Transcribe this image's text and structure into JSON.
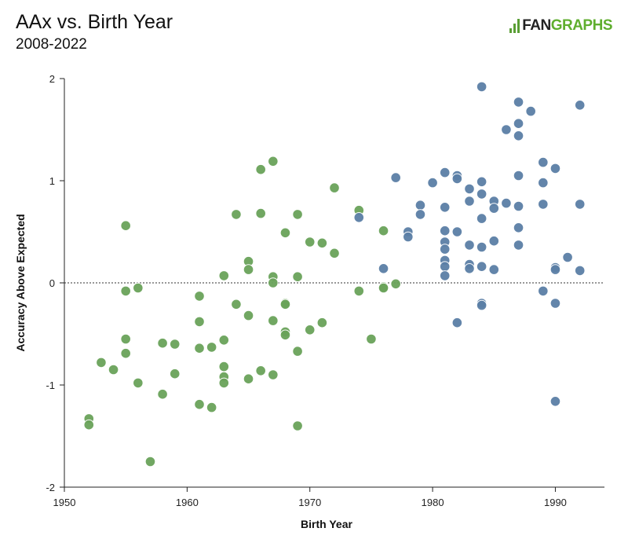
{
  "header": {
    "title": "AAx vs. Birth Year",
    "subtitle": "2008-2022",
    "logo_text_dark": "FAN",
    "logo_text_green": "GRAPHS"
  },
  "chart_data": {
    "type": "scatter",
    "title": "AAx vs. Birth Year",
    "subtitle": "2008-2022",
    "xlabel": "Birth Year",
    "ylabel": "Accuracy Above Expected",
    "xlim": [
      1950,
      1994
    ],
    "ylim": [
      -2,
      2
    ],
    "xticks": [
      1950,
      1960,
      1970,
      1980,
      1990
    ],
    "yticks": [
      -2,
      -1,
      0,
      1,
      2
    ],
    "reference_line": {
      "y": 0,
      "style": "dotted"
    },
    "grid": false,
    "colors": {
      "green": "#6aa35a",
      "blue": "#5b7fa6",
      "stroke": "#ffffff"
    },
    "series": [
      {
        "color": "green",
        "points": [
          [
            1952,
            -1.33
          ],
          [
            1952,
            -1.39
          ],
          [
            1953,
            -0.78
          ],
          [
            1954,
            -0.85
          ],
          [
            1955,
            0.56
          ],
          [
            1955,
            -0.08
          ],
          [
            1955,
            -0.55
          ],
          [
            1955,
            -0.69
          ],
          [
            1956,
            -0.05
          ],
          [
            1956,
            -0.98
          ],
          [
            1957,
            -1.75
          ],
          [
            1958,
            -0.59
          ],
          [
            1958,
            -1.09
          ],
          [
            1959,
            -0.6
          ],
          [
            1959,
            -0.89
          ],
          [
            1961,
            -0.13
          ],
          [
            1961,
            -0.38
          ],
          [
            1961,
            -0.64
          ],
          [
            1961,
            -1.19
          ],
          [
            1962,
            -0.63
          ],
          [
            1962,
            -1.22
          ],
          [
            1963,
            0.07
          ],
          [
            1963,
            -0.56
          ],
          [
            1963,
            -0.82
          ],
          [
            1963,
            -0.92
          ],
          [
            1963,
            -0.98
          ],
          [
            1964,
            0.67
          ],
          [
            1964,
            -0.21
          ],
          [
            1965,
            0.21
          ],
          [
            1965,
            0.13
          ],
          [
            1965,
            -0.32
          ],
          [
            1965,
            -0.94
          ],
          [
            1966,
            1.11
          ],
          [
            1966,
            0.68
          ],
          [
            1966,
            -0.86
          ],
          [
            1967,
            1.19
          ],
          [
            1967,
            0.06
          ],
          [
            1967,
            0.0
          ],
          [
            1967,
            -0.37
          ],
          [
            1967,
            -0.9
          ],
          [
            1968,
            0.49
          ],
          [
            1968,
            -0.2
          ],
          [
            1968,
            -0.21
          ],
          [
            1968,
            -0.48
          ],
          [
            1968,
            -0.51
          ],
          [
            1969,
            0.67
          ],
          [
            1969,
            0.06
          ],
          [
            1969,
            -0.67
          ],
          [
            1969,
            -1.4
          ],
          [
            1970,
            0.4
          ],
          [
            1970,
            -0.46
          ],
          [
            1971,
            0.39
          ],
          [
            1971,
            -0.39
          ],
          [
            1972,
            0.93
          ],
          [
            1972,
            0.29
          ],
          [
            1974,
            0.71
          ],
          [
            1974,
            -0.08
          ],
          [
            1975,
            -0.55
          ],
          [
            1976,
            0.51
          ],
          [
            1976,
            -0.04
          ],
          [
            1976,
            -0.05
          ],
          [
            1977,
            -0.01
          ]
        ]
      },
      {
        "color": "blue",
        "points": [
          [
            1974,
            0.64
          ],
          [
            1976,
            0.14
          ],
          [
            1977,
            1.03
          ],
          [
            1978,
            0.5
          ],
          [
            1978,
            0.45
          ],
          [
            1979,
            0.76
          ],
          [
            1979,
            0.67
          ],
          [
            1980,
            0.98
          ],
          [
            1981,
            1.08
          ],
          [
            1981,
            0.74
          ],
          [
            1981,
            0.51
          ],
          [
            1981,
            0.4
          ],
          [
            1981,
            0.33
          ],
          [
            1981,
            0.22
          ],
          [
            1981,
            0.16
          ],
          [
            1981,
            0.07
          ],
          [
            1982,
            1.05
          ],
          [
            1982,
            1.02
          ],
          [
            1982,
            0.5
          ],
          [
            1982,
            -0.39
          ],
          [
            1983,
            0.92
          ],
          [
            1983,
            0.8
          ],
          [
            1983,
            0.37
          ],
          [
            1983,
            0.18
          ],
          [
            1983,
            0.14
          ],
          [
            1984,
            1.92
          ],
          [
            1984,
            0.99
          ],
          [
            1984,
            0.87
          ],
          [
            1984,
            0.63
          ],
          [
            1984,
            0.35
          ],
          [
            1984,
            0.16
          ],
          [
            1984,
            -0.2
          ],
          [
            1984,
            -0.22
          ],
          [
            1985,
            0.8
          ],
          [
            1985,
            0.73
          ],
          [
            1985,
            0.41
          ],
          [
            1985,
            0.13
          ],
          [
            1986,
            1.5
          ],
          [
            1986,
            0.78
          ],
          [
            1987,
            1.77
          ],
          [
            1987,
            1.56
          ],
          [
            1987,
            1.44
          ],
          [
            1987,
            1.05
          ],
          [
            1987,
            0.75
          ],
          [
            1987,
            0.54
          ],
          [
            1987,
            0.37
          ],
          [
            1988,
            1.68
          ],
          [
            1989,
            1.18
          ],
          [
            1989,
            0.98
          ],
          [
            1989,
            0.77
          ],
          [
            1989,
            -0.08
          ],
          [
            1990,
            1.12
          ],
          [
            1990,
            0.15
          ],
          [
            1990,
            0.13
          ],
          [
            1990,
            -0.2
          ],
          [
            1990,
            -1.16
          ],
          [
            1991,
            0.25
          ],
          [
            1992,
            1.74
          ],
          [
            1992,
            0.77
          ],
          [
            1992,
            0.12
          ]
        ]
      }
    ]
  }
}
